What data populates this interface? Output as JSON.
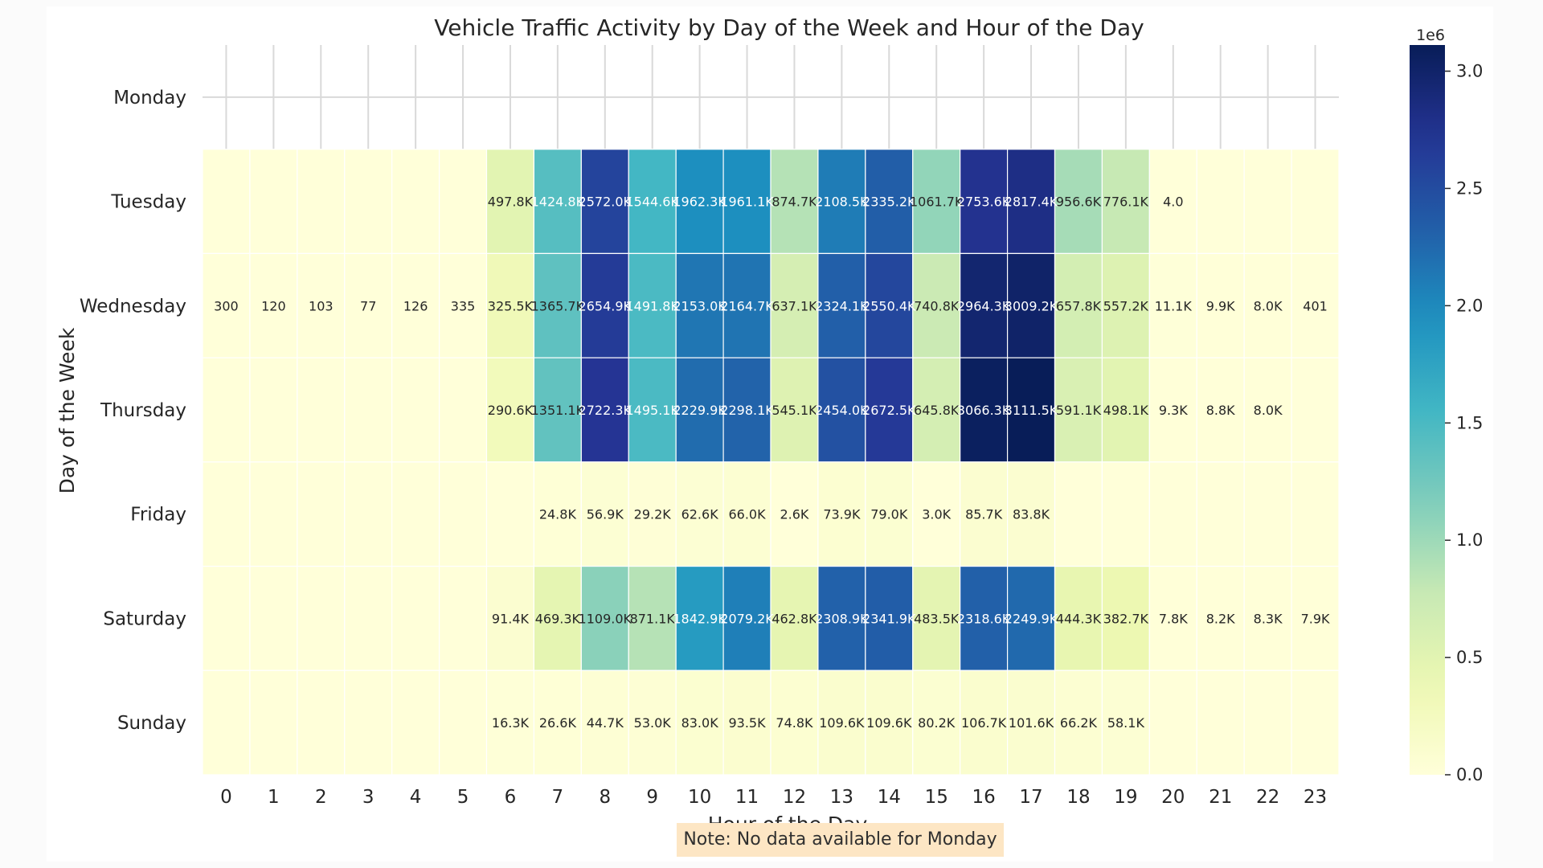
{
  "chart_data": {
    "type": "heatmap",
    "title": "Vehicle Traffic Activity by Day of the Week and Hour of the Day",
    "xlabel": "Hour of the Day",
    "ylabel": "Day of the Week",
    "rows": [
      "Monday",
      "Tuesday",
      "Wednesday",
      "Thursday",
      "Friday",
      "Saturday",
      "Sunday"
    ],
    "columns": [
      "0",
      "1",
      "2",
      "3",
      "4",
      "5",
      "6",
      "7",
      "8",
      "9",
      "10",
      "11",
      "12",
      "13",
      "14",
      "15",
      "16",
      "17",
      "18",
      "19",
      "20",
      "21",
      "22",
      "23"
    ],
    "values": [
      [
        null,
        null,
        null,
        null,
        null,
        null,
        null,
        null,
        null,
        null,
        null,
        null,
        null,
        null,
        null,
        null,
        null,
        null,
        null,
        null,
        null,
        null,
        null,
        null
      ],
      [
        0,
        0,
        0,
        0,
        0,
        0,
        497800,
        1424800,
        2572000,
        1544600,
        1962300,
        1961100,
        874700,
        2108500,
        2335200,
        1061700,
        2753600,
        2817400,
        956600,
        776100,
        4,
        0,
        0,
        0
      ],
      [
        300,
        120,
        103,
        77,
        126,
        335,
        325500,
        1365700,
        2654900,
        1491800,
        2153000,
        2164700,
        637100,
        2324100,
        2550400,
        740800,
        2964300,
        3009200,
        657800,
        557200,
        11100,
        9900,
        8000,
        401
      ],
      [
        0,
        0,
        0,
        0,
        0,
        0,
        290600,
        1351100,
        2722300,
        1495100,
        2229900,
        2298100,
        545100,
        2454000,
        2672500,
        645800,
        3066300,
        3111500,
        591100,
        498100,
        9300,
        8800,
        8000,
        0
      ],
      [
        0,
        0,
        0,
        0,
        0,
        0,
        0,
        24800,
        56900,
        29200,
        62600,
        66000,
        2600,
        73900,
        79000,
        3000,
        85700,
        83800,
        0,
        0,
        0,
        0,
        0,
        0
      ],
      [
        0,
        0,
        0,
        0,
        0,
        0,
        91400,
        469300,
        1109000,
        871100,
        1842900,
        2079200,
        462800,
        2308900,
        2341900,
        483500,
        2318600,
        2249900,
        444300,
        382700,
        7800,
        8200,
        8300,
        7900
      ],
      [
        0,
        0,
        0,
        0,
        0,
        0,
        16300,
        26600,
        44700,
        53000,
        83000,
        93500,
        74800,
        109600,
        109600,
        80200,
        106700,
        101600,
        66200,
        58100,
        0,
        0,
        0,
        0
      ]
    ],
    "cell_labels": [
      [
        "",
        "",
        "",
        "",
        "",
        "",
        "",
        "",
        "",
        "",
        "",
        "",
        "",
        "",
        "",
        "",
        "",
        "",
        "",
        "",
        "",
        "",
        "",
        ""
      ],
      [
        "",
        "",
        "",
        "",
        "",
        "",
        "497.8K",
        "1424.8K",
        "2572.0K",
        "1544.6K",
        "1962.3K",
        "1961.1K",
        "874.7K",
        "2108.5K",
        "2335.2K",
        "1061.7K",
        "2753.6K",
        "2817.4K",
        "956.6K",
        "776.1K",
        "4.0",
        "",
        "",
        ""
      ],
      [
        "300",
        "120",
        "103",
        "77",
        "126",
        "335",
        "325.5K",
        "1365.7K",
        "2654.9K",
        "1491.8K",
        "2153.0K",
        "2164.7K",
        "637.1K",
        "2324.1K",
        "2550.4K",
        "740.8K",
        "2964.3K",
        "3009.2K",
        "657.8K",
        "557.2K",
        "11.1K",
        "9.9K",
        "8.0K",
        "401"
      ],
      [
        "",
        "",
        "",
        "",
        "",
        "",
        "290.6K",
        "1351.1K",
        "2722.3K",
        "1495.1K",
        "2229.9K",
        "2298.1K",
        "545.1K",
        "2454.0K",
        "2672.5K",
        "645.8K",
        "3066.3K",
        "3111.5K",
        "591.1K",
        "498.1K",
        "9.3K",
        "8.8K",
        "8.0K",
        ""
      ],
      [
        "",
        "",
        "",
        "",
        "",
        "",
        "",
        "24.8K",
        "56.9K",
        "29.2K",
        "62.6K",
        "66.0K",
        "2.6K",
        "73.9K",
        "79.0K",
        "3.0K",
        "85.7K",
        "83.8K",
        "",
        "",
        "",
        "",
        "",
        ""
      ],
      [
        "",
        "",
        "",
        "",
        "",
        "",
        "91.4K",
        "469.3K",
        "1109.0K",
        "871.1K",
        "1842.9K",
        "2079.2K",
        "462.8K",
        "2308.9K",
        "2341.9K",
        "483.5K",
        "2318.6K",
        "2249.9K",
        "444.3K",
        "382.7K",
        "7.8K",
        "8.2K",
        "8.3K",
        "7.9K"
      ],
      [
        "",
        "",
        "",
        "",
        "",
        "",
        "16.3K",
        "26.6K",
        "44.7K",
        "53.0K",
        "83.0K",
        "93.5K",
        "74.8K",
        "109.6K",
        "109.6K",
        "80.2K",
        "106.7K",
        "101.6K",
        "66.2K",
        "58.1K",
        "",
        "",
        "",
        ""
      ]
    ],
    "colorbar": {
      "colormap": "YlGnBu",
      "vmin": 0,
      "vmax": 3111500,
      "offset_label": "1e6",
      "ticks": [
        0.0,
        0.5,
        1.0,
        1.5,
        2.0,
        2.5,
        3.0
      ],
      "tick_labels": [
        "0.0",
        "0.5",
        "1.0",
        "1.5",
        "2.0",
        "2.5",
        "3.0"
      ]
    }
  },
  "note": "Note: No data available for Monday"
}
